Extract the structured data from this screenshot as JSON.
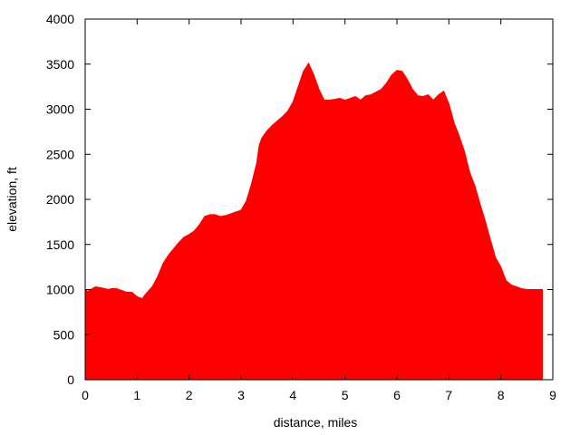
{
  "chart_data": {
    "type": "area",
    "title": "",
    "xlabel": "distance, miles",
    "ylabel": "elevation, ft",
    "xlim": [
      0,
      9
    ],
    "ylim": [
      0,
      4000
    ],
    "xticks": [
      0,
      1,
      2,
      3,
      4,
      5,
      6,
      7,
      8,
      9
    ],
    "yticks": [
      0,
      500,
      1000,
      1500,
      2000,
      2500,
      3000,
      3500,
      4000
    ],
    "grid": false,
    "legend": "none",
    "fill_color": "#ff0000",
    "series": [
      {
        "x": [
          0.0,
          0.05,
          0.1,
          0.2,
          0.3,
          0.45,
          0.5,
          0.6,
          0.7,
          0.8,
          0.9,
          1.0,
          1.1,
          1.15,
          1.3,
          1.4,
          1.5,
          1.6,
          1.7,
          1.8,
          1.9,
          2.0,
          2.1,
          2.2,
          2.3,
          2.4,
          2.5,
          2.6,
          2.7,
          2.8,
          2.9,
          3.0,
          3.1,
          3.2,
          3.3,
          3.35,
          3.4,
          3.5,
          3.6,
          3.7,
          3.8,
          3.9,
          4.0,
          4.1,
          4.2,
          4.3,
          4.4,
          4.5,
          4.6,
          4.7,
          4.8,
          4.9,
          5.0,
          5.1,
          5.2,
          5.3,
          5.4,
          5.5,
          5.6,
          5.7,
          5.8,
          5.9,
          6.0,
          6.1,
          6.2,
          6.3,
          6.4,
          6.5,
          6.6,
          6.7,
          6.8,
          6.9,
          7.0,
          7.1,
          7.2,
          7.3,
          7.4,
          7.5,
          7.6,
          7.7,
          7.8,
          7.9,
          8.0,
          8.1,
          8.2,
          8.3,
          8.4,
          8.5,
          8.6,
          8.7,
          8.8
        ],
        "y": [
          1000,
          980,
          1000,
          1030,
          1020,
          1000,
          1010,
          1010,
          990,
          970,
          970,
          920,
          900,
          940,
          1040,
          1150,
          1290,
          1380,
          1450,
          1520,
          1580,
          1610,
          1650,
          1720,
          1810,
          1830,
          1830,
          1810,
          1820,
          1840,
          1860,
          1880,
          1980,
          2170,
          2400,
          2600,
          2680,
          2760,
          2820,
          2870,
          2920,
          2980,
          3080,
          3250,
          3420,
          3510,
          3380,
          3220,
          3100,
          3100,
          3110,
          3120,
          3100,
          3120,
          3140,
          3100,
          3150,
          3160,
          3190,
          3220,
          3290,
          3380,
          3430,
          3420,
          3330,
          3220,
          3150,
          3140,
          3160,
          3100,
          3160,
          3200,
          3060,
          2850,
          2700,
          2530,
          2300,
          2150,
          1950,
          1760,
          1550,
          1350,
          1250,
          1100,
          1050,
          1030,
          1010,
          1000,
          1000,
          1000,
          1000
        ]
      }
    ]
  }
}
